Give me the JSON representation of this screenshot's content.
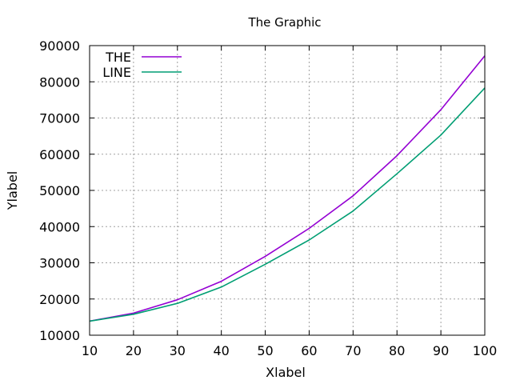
{
  "chart_data": {
    "type": "line",
    "title": "The Graphic",
    "xlabel": "Xlabel",
    "ylabel": "Ylabel",
    "xlim": [
      10,
      100
    ],
    "ylim": [
      10000,
      90000
    ],
    "xticks": [
      10,
      20,
      30,
      40,
      50,
      60,
      70,
      80,
      90,
      100
    ],
    "yticks": [
      10000,
      20000,
      30000,
      40000,
      50000,
      60000,
      70000,
      80000,
      90000
    ],
    "grid": true,
    "legend_position": "top-left",
    "x": [
      10,
      20,
      30,
      40,
      50,
      60,
      70,
      80,
      90,
      100
    ],
    "series": [
      {
        "name": "THE",
        "color": "#9400d3",
        "values": [
          13900,
          16100,
          19800,
          24900,
          31800,
          39500,
          48500,
          59600,
          72300,
          87200
        ]
      },
      {
        "name": "LINE",
        "color": "#009e73",
        "values": [
          13900,
          15800,
          18800,
          23300,
          29600,
          36300,
          44300,
          54600,
          65300,
          78300
        ]
      }
    ]
  }
}
